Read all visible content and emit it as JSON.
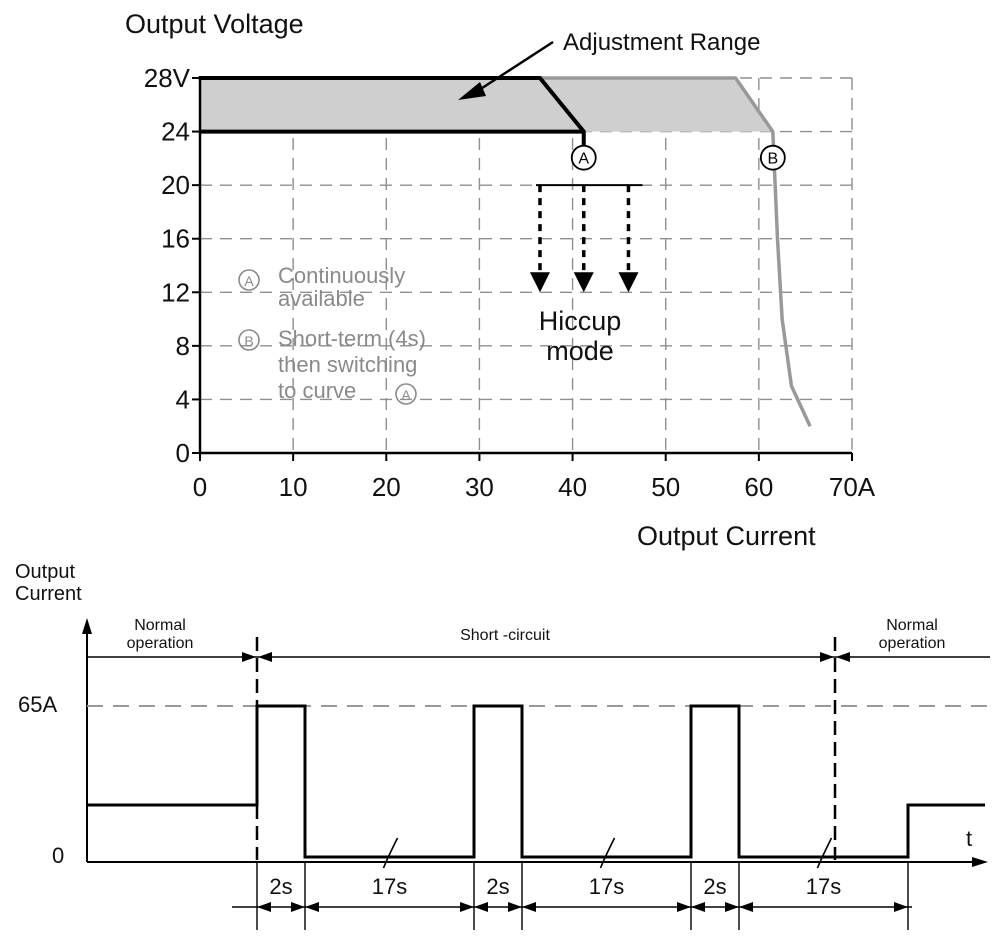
{
  "chart_data": [
    {
      "type": "line",
      "title": "",
      "ylabel": "Output Voltage",
      "xlabel": "Output Current",
      "xlim": [
        0,
        70
      ],
      "ylim": [
        0,
        28
      ],
      "x_ticks": [
        "0",
        "10",
        "20",
        "30",
        "40",
        "50",
        "60",
        "70A"
      ],
      "y_ticks": [
        "0",
        "4",
        "8",
        "12",
        "16",
        "20",
        "24",
        "28V"
      ],
      "grid": true,
      "series": [
        {
          "key": "A",
          "x": [
            0,
            36.5,
            41.2
          ],
          "y": [
            28,
            28,
            24
          ],
          "color": "#000000"
        },
        {
          "key": "A_low",
          "x": [
            0,
            41.2,
            41.2
          ],
          "y": [
            24,
            24,
            22.4
          ],
          "color": "#000000"
        },
        {
          "key": "B",
          "x": [
            36.5,
            57.5,
            61.5,
            62,
            62.5,
            63.5,
            65.5
          ],
          "y": [
            28,
            28,
            24,
            16,
            10,
            5,
            2
          ],
          "color": "#999999"
        }
      ],
      "adjustment_band": {
        "x_top": [
          0,
          57.5
        ],
        "x_bottom": [
          0,
          61.5
        ],
        "y": [
          24,
          28
        ],
        "label": "Adjustment Range"
      },
      "hiccup": {
        "label_line1": "Hiccup",
        "label_line2": "mode",
        "x": [
          36.5,
          41.2,
          46
        ],
        "y_from": 20,
        "y_to": 12
      },
      "markers": [
        {
          "label": "A",
          "x": 41.2,
          "y": 22.2
        },
        {
          "label": "B",
          "x": 61.5,
          "y": 22.2
        }
      ],
      "legend": [
        {
          "symbol": "A",
          "lines": [
            "Continuously",
            "available"
          ]
        },
        {
          "symbol": "B",
          "lines": [
            "Short-term (4s)",
            "then switching",
            "to curve"
          ],
          "end_symbol": "A"
        }
      ]
    },
    {
      "type": "line",
      "ylabel_line1": "Output",
      "ylabel_line2": "Current",
      "xlabel": "t",
      "y_ticks": [
        "0",
        "65A"
      ],
      "phases": [
        {
          "line1": "Normal",
          "line2": "operation"
        },
        {
          "line1": "Short -circuit",
          "line2": ""
        },
        {
          "line1": "Normal",
          "line2": "operation"
        }
      ],
      "time_segments": [
        "2s",
        "17s",
        "2s",
        "17s",
        "2s",
        "17s"
      ],
      "pulse_segments_s": [
        2,
        17,
        2,
        17,
        2,
        17
      ],
      "levels": {
        "normal": 0.3,
        "pulse": 1.0,
        "off": 0.02
      }
    }
  ],
  "colors": {
    "black": "#000000",
    "gray": "#999999",
    "grid": "#8f8f8f",
    "band": "#cfcfcf"
  }
}
